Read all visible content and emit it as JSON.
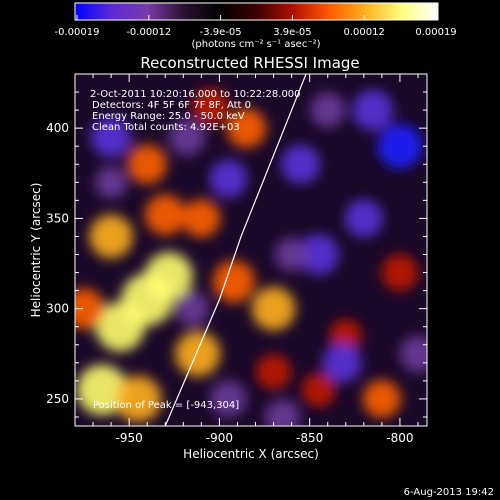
{
  "chart_data": {
    "type": "heatmap",
    "title": "Reconstructed RHESSI Image",
    "colorbar": {
      "ticks": [
        "-0.00019",
        "-0.00012",
        "-3.9e-05",
        "3.9e-05",
        "0.00012",
        "0.00019"
      ],
      "unit_label": "(photons cm⁻² s⁻¹ asec⁻²)",
      "colormap": [
        "#0000ff",
        "#5a2ad6",
        "#7a3aa8",
        "#2a1030",
        "#000000",
        "#3a0000",
        "#b01000",
        "#ff5a00",
        "#ffb020",
        "#ffff80",
        "#ffffff"
      ]
    },
    "xlabel": "Heliocentric X (arcsec)",
    "ylabel": "Heliocentric Y (arcsec)",
    "xlim": [
      -980,
      -785
    ],
    "ylim": [
      235,
      430
    ],
    "xticks": [
      "-950",
      "-900",
      "-850",
      "-800"
    ],
    "xtick_values": [
      -950,
      -900,
      -850,
      -800
    ],
    "yticks": [
      "250",
      "300",
      "350",
      "400"
    ],
    "ytick_values": [
      250,
      300,
      350,
      400
    ],
    "annotations": [
      "2-Oct-2011 10:20:16.000 to 10:22:28.000",
      "Detectors: 4F 5F 6F 7F 8F, Att 0",
      "Energy Range: 25.0 - 50.0 keV",
      "Clean     Total counts: 4.92E+03"
    ],
    "peak_label": "Position of Peak = [-943,304]",
    "limb_curve": {
      "x": [
        -930,
        -915,
        -900,
        -888,
        -876,
        -866,
        -858,
        -852
      ],
      "y": [
        235,
        270,
        305,
        340,
        370,
        395,
        415,
        430
      ]
    },
    "blobs": [
      {
        "x": -940,
        "y": 305,
        "v": 1.0
      },
      {
        "x": -955,
        "y": 290,
        "v": 0.9
      },
      {
        "x": -928,
        "y": 318,
        "v": 0.85
      },
      {
        "x": -965,
        "y": 255,
        "v": 0.95
      },
      {
        "x": -945,
        "y": 250,
        "v": 0.8
      },
      {
        "x": -912,
        "y": 275,
        "v": 0.75
      },
      {
        "x": -960,
        "y": 340,
        "v": 0.7
      },
      {
        "x": -930,
        "y": 352,
        "v": 0.6
      },
      {
        "x": -940,
        "y": 380,
        "v": 0.55
      },
      {
        "x": -910,
        "y": 350,
        "v": 0.5
      },
      {
        "x": -975,
        "y": 300,
        "v": 0.6
      },
      {
        "x": -892,
        "y": 315,
        "v": 0.65
      },
      {
        "x": -870,
        "y": 300,
        "v": 0.7
      },
      {
        "x": -885,
        "y": 400,
        "v": 0.55
      },
      {
        "x": -905,
        "y": 412,
        "v": 0.45
      },
      {
        "x": -870,
        "y": 265,
        "v": 0.4
      },
      {
        "x": -845,
        "y": 255,
        "v": 0.35
      },
      {
        "x": -800,
        "y": 320,
        "v": 0.45
      },
      {
        "x": -810,
        "y": 250,
        "v": 0.5
      },
      {
        "x": -830,
        "y": 285,
        "v": 0.3
      },
      {
        "x": -845,
        "y": 330,
        "v": -0.6
      },
      {
        "x": -820,
        "y": 350,
        "v": -0.5
      },
      {
        "x": -800,
        "y": 390,
        "v": -0.75
      },
      {
        "x": -815,
        "y": 410,
        "v": -0.6
      },
      {
        "x": -855,
        "y": 380,
        "v": -0.55
      },
      {
        "x": -895,
        "y": 372,
        "v": -0.5
      },
      {
        "x": -960,
        "y": 395,
        "v": -0.6
      },
      {
        "x": -918,
        "y": 395,
        "v": -0.45
      },
      {
        "x": -960,
        "y": 370,
        "v": -0.3
      },
      {
        "x": -895,
        "y": 250,
        "v": -0.45
      },
      {
        "x": -865,
        "y": 240,
        "v": -0.4
      },
      {
        "x": -832,
        "y": 270,
        "v": -0.55
      },
      {
        "x": -790,
        "y": 275,
        "v": -0.45
      },
      {
        "x": -915,
        "y": 300,
        "v": -0.35
      },
      {
        "x": -860,
        "y": 330,
        "v": -0.35
      },
      {
        "x": -840,
        "y": 410,
        "v": -0.4
      }
    ]
  },
  "footer": {
    "timestamp": "6-Aug-2013 19:42"
  }
}
